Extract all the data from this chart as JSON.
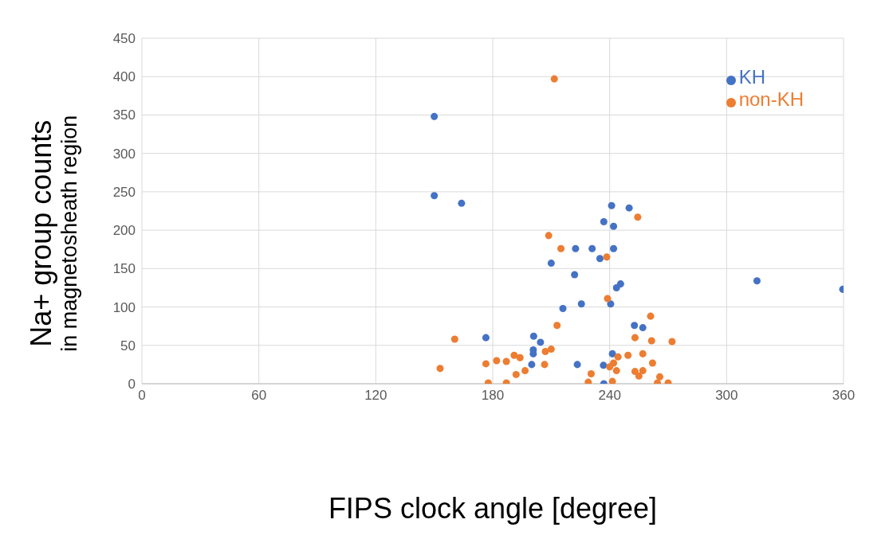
{
  "chart_data": {
    "type": "scatter",
    "xlabel": "FIPS clock angle [degree]",
    "ylabel": "Na+ group counts\nin magnetosheath  region",
    "xlim": [
      0,
      360
    ],
    "xticks": [
      0,
      60,
      120,
      180,
      240,
      300,
      360
    ],
    "ylim": [
      0,
      450
    ],
    "yticks": [
      0,
      50,
      100,
      150,
      200,
      250,
      300,
      350,
      400,
      450
    ],
    "grid": true,
    "legend": "top right",
    "marker": "circle",
    "series": [
      {
        "name": "KH",
        "color": "#4472c4",
        "x": [
          150,
          150,
          164,
          241,
          250,
          237,
          242,
          222.5,
          231,
          242,
          235,
          210,
          222,
          245.6,
          243.5,
          240.5,
          225.5,
          216,
          252.7,
          257,
          176.5,
          201,
          204.5,
          200.8,
          200.8,
          200,
          223.4,
          241.4,
          236.8,
          237,
          315.6,
          359.6
        ],
        "values": [
          348,
          245,
          235,
          232,
          229,
          211,
          205,
          176,
          176,
          176,
          163,
          157,
          142,
          130,
          125,
          104,
          104,
          98,
          76,
          73,
          60,
          62,
          54,
          44,
          39,
          25,
          25,
          39,
          24,
          0,
          134,
          123
        ]
      },
      {
        "name": "non-KH",
        "color": "#ed7d31",
        "x": [
          153,
          160.5,
          176.5,
          177.7,
          182,
          187,
          187,
          191,
          194,
          192,
          196.6,
          206.6,
          207,
          210,
          213,
          208.7,
          215,
          238.5,
          254.4,
          238.9,
          261,
          253,
          261.5,
          272,
          257,
          249.4,
          244.3,
          242,
          240,
          243.5,
          262,
          253,
          257,
          255,
          230.5,
          229,
          241.4,
          265.7,
          264.5,
          270,
          211.6
        ],
        "values": [
          20,
          58,
          26,
          1,
          30,
          29,
          1,
          37,
          34,
          12,
          17,
          25,
          42,
          45,
          76,
          193,
          176,
          165,
          217,
          111,
          88,
          60,
          56,
          55,
          39,
          37,
          35,
          27,
          22,
          17,
          27,
          16,
          17,
          10,
          13,
          2,
          3,
          9,
          1,
          1,
          397
        ]
      }
    ]
  }
}
